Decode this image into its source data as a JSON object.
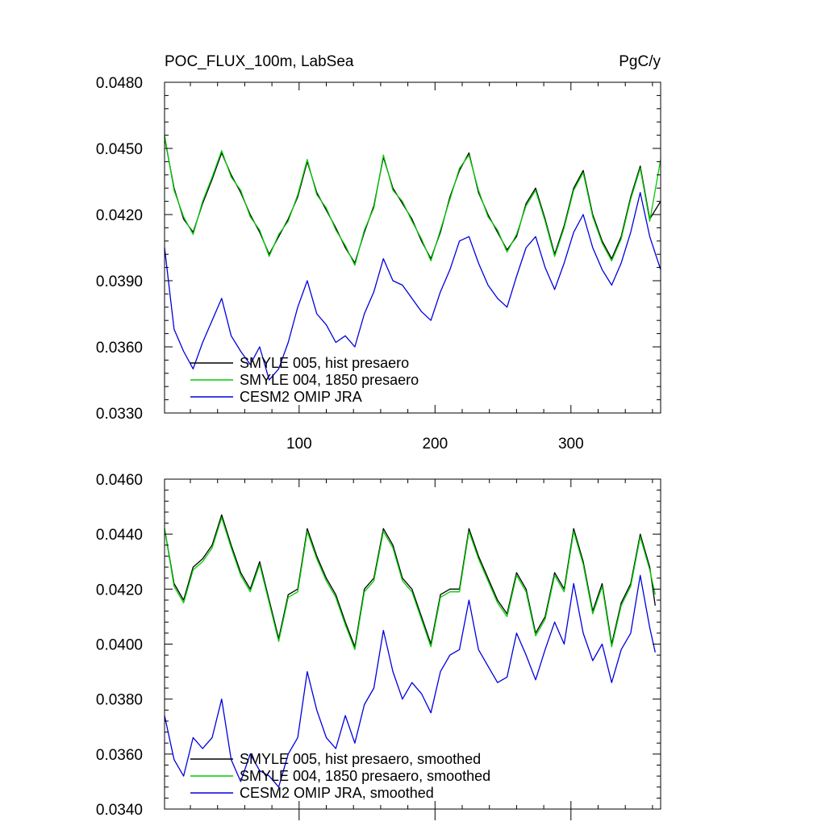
{
  "chart_data": [
    {
      "type": "line",
      "title_left": "POC_FLUX_100m, LabSea",
      "title_right": "PgC/y",
      "xlabel": "",
      "ylabel": "",
      "xlim": [
        1,
        366
      ],
      "ylim": [
        0.033,
        0.048
      ],
      "yticks": [
        0.033,
        0.036,
        0.039,
        0.042,
        0.045,
        0.048
      ],
      "ytick_labels": [
        "0.0330",
        "0.0360",
        "0.0390",
        "0.0420",
        "0.0450",
        "0.0480"
      ],
      "xticks": [
        100,
        200,
        300
      ],
      "xtick_labels": [
        "100",
        "200",
        "300"
      ],
      "legend_position": "bottom-left",
      "series": [
        {
          "name": "SMYLE 005, hist presaero",
          "color": "#000000",
          "x": [
            1,
            8,
            15,
            22,
            29,
            36,
            43,
            50,
            57,
            64,
            71,
            78,
            85,
            92,
            99,
            106,
            113,
            120,
            127,
            134,
            141,
            148,
            155,
            162,
            169,
            176,
            183,
            190,
            197,
            204,
            211,
            218,
            225,
            232,
            239,
            246,
            253,
            260,
            267,
            274,
            281,
            288,
            295,
            302,
            309,
            316,
            323,
            330,
            337,
            344,
            351,
            358,
            366
          ],
          "values": [
            0.0455,
            0.0432,
            0.0418,
            0.0412,
            0.0425,
            0.0436,
            0.0448,
            0.0438,
            0.043,
            0.042,
            0.0412,
            0.0402,
            0.041,
            0.0418,
            0.0428,
            0.0444,
            0.043,
            0.0422,
            0.0414,
            0.0405,
            0.0398,
            0.0412,
            0.0424,
            0.0446,
            0.0432,
            0.0425,
            0.0418,
            0.0408,
            0.04,
            0.0412,
            0.0428,
            0.044,
            0.0448,
            0.043,
            0.042,
            0.0412,
            0.0404,
            0.041,
            0.0425,
            0.0432,
            0.0418,
            0.0402,
            0.0415,
            0.0432,
            0.044,
            0.042,
            0.0408,
            0.04,
            0.041,
            0.0428,
            0.0442,
            0.0418,
            0.0426
          ]
        },
        {
          "name": "SMYLE 004, 1850 presaero",
          "color": "#00cc00",
          "x": [
            1,
            8,
            15,
            22,
            29,
            36,
            43,
            50,
            57,
            64,
            71,
            78,
            85,
            92,
            99,
            106,
            113,
            120,
            127,
            134,
            141,
            148,
            155,
            162,
            169,
            176,
            183,
            190,
            197,
            204,
            211,
            218,
            225,
            232,
            239,
            246,
            253,
            260,
            267,
            274,
            281,
            288,
            295,
            302,
            309,
            316,
            323,
            330,
            337,
            344,
            351,
            358,
            366
          ],
          "values": [
            0.0456,
            0.0431,
            0.0419,
            0.0411,
            0.0426,
            0.0437,
            0.0449,
            0.0437,
            0.0431,
            0.0419,
            0.0413,
            0.0401,
            0.0411,
            0.0417,
            0.0429,
            0.0445,
            0.0429,
            0.0423,
            0.0413,
            0.0406,
            0.0397,
            0.0413,
            0.0423,
            0.0447,
            0.0431,
            0.0426,
            0.0417,
            0.0409,
            0.0399,
            0.0413,
            0.0427,
            0.0441,
            0.0447,
            0.0431,
            0.0419,
            0.0413,
            0.0403,
            0.0411,
            0.0424,
            0.0431,
            0.0417,
            0.0401,
            0.0414,
            0.0431,
            0.0439,
            0.0419,
            0.0407,
            0.0399,
            0.0409,
            0.0427,
            0.0441,
            0.0417,
            0.0445
          ]
        },
        {
          "name": "CESM2 OMIP JRA",
          "color": "#0000dd",
          "x": [
            1,
            8,
            15,
            22,
            29,
            36,
            43,
            50,
            57,
            64,
            71,
            78,
            85,
            92,
            99,
            106,
            113,
            120,
            127,
            134,
            141,
            148,
            155,
            162,
            169,
            176,
            183,
            190,
            197,
            204,
            211,
            218,
            225,
            232,
            239,
            246,
            253,
            260,
            267,
            274,
            281,
            288,
            295,
            302,
            309,
            316,
            323,
            330,
            337,
            344,
            351,
            358,
            366
          ],
          "values": [
            0.0405,
            0.0368,
            0.0358,
            0.035,
            0.0362,
            0.0372,
            0.0382,
            0.0365,
            0.0358,
            0.0352,
            0.036,
            0.0345,
            0.035,
            0.0362,
            0.0378,
            0.039,
            0.0375,
            0.037,
            0.0362,
            0.0365,
            0.036,
            0.0375,
            0.0385,
            0.04,
            0.039,
            0.0388,
            0.0382,
            0.0376,
            0.0372,
            0.0385,
            0.0395,
            0.0408,
            0.041,
            0.0398,
            0.0388,
            0.0382,
            0.0378,
            0.0392,
            0.0405,
            0.041,
            0.0396,
            0.0386,
            0.0398,
            0.0412,
            0.042,
            0.0405,
            0.0395,
            0.0388,
            0.0398,
            0.0412,
            0.043,
            0.041,
            0.0395
          ]
        }
      ]
    },
    {
      "type": "line",
      "title_left": "",
      "title_right": "",
      "xlabel": "",
      "ylabel": "",
      "xlim": [
        1,
        366
      ],
      "ylim": [
        0.034,
        0.046
      ],
      "yticks": [
        0.034,
        0.036,
        0.038,
        0.04,
        0.042,
        0.044,
        0.046
      ],
      "ytick_labels": [
        "0.0340",
        "0.0360",
        "0.0380",
        "0.0400",
        "0.0420",
        "0.0440",
        "0.0460"
      ],
      "xticks": [
        100,
        200,
        300
      ],
      "xtick_labels": [],
      "legend_position": "bottom-left",
      "series": [
        {
          "name": "SMYLE 005, hist presaero, smoothed",
          "color": "#000000",
          "x": [
            1,
            8,
            15,
            22,
            29,
            36,
            43,
            50,
            57,
            64,
            71,
            78,
            85,
            92,
            99,
            106,
            113,
            120,
            127,
            134,
            141,
            148,
            155,
            162,
            169,
            176,
            183,
            190,
            197,
            204,
            211,
            218,
            225,
            232,
            239,
            246,
            253,
            260,
            267,
            274,
            281,
            288,
            295,
            302,
            309,
            316,
            323,
            330,
            337,
            344,
            351,
            358,
            362
          ],
          "values": [
            0.0442,
            0.0422,
            0.0416,
            0.0428,
            0.0431,
            0.0436,
            0.0447,
            0.0436,
            0.0426,
            0.042,
            0.043,
            0.0416,
            0.0402,
            0.0418,
            0.042,
            0.0442,
            0.0432,
            0.0424,
            0.0418,
            0.0408,
            0.0399,
            0.042,
            0.0424,
            0.0442,
            0.0436,
            0.0424,
            0.042,
            0.041,
            0.04,
            0.0418,
            0.042,
            0.042,
            0.0442,
            0.0432,
            0.0424,
            0.0416,
            0.0411,
            0.0426,
            0.042,
            0.0404,
            0.041,
            0.0426,
            0.042,
            0.0442,
            0.043,
            0.0412,
            0.0422,
            0.04,
            0.0415,
            0.0422,
            0.044,
            0.0428,
            0.0414
          ]
        },
        {
          "name": "SMYLE 004, 1850 presaero, smoothed",
          "color": "#00cc00",
          "x": [
            1,
            8,
            15,
            22,
            29,
            36,
            43,
            50,
            57,
            64,
            71,
            78,
            85,
            92,
            99,
            106,
            113,
            120,
            127,
            134,
            141,
            148,
            155,
            162,
            169,
            176,
            183,
            190,
            197,
            204,
            211,
            218,
            225,
            232,
            239,
            246,
            253,
            260,
            267,
            274,
            281,
            288,
            295,
            302,
            309,
            316,
            323,
            330,
            337,
            344,
            351,
            358,
            362
          ],
          "values": [
            0.0442,
            0.0421,
            0.0415,
            0.0427,
            0.043,
            0.0435,
            0.0446,
            0.0435,
            0.0425,
            0.0419,
            0.0429,
            0.0415,
            0.0401,
            0.0417,
            0.0419,
            0.0441,
            0.0431,
            0.0423,
            0.0417,
            0.0407,
            0.0398,
            0.0419,
            0.0423,
            0.0441,
            0.0435,
            0.0423,
            0.0419,
            0.0409,
            0.0399,
            0.0417,
            0.0419,
            0.0419,
            0.0441,
            0.0431,
            0.0423,
            0.0415,
            0.041,
            0.0425,
            0.0419,
            0.0403,
            0.0409,
            0.0425,
            0.0419,
            0.0441,
            0.0429,
            0.0411,
            0.0421,
            0.0399,
            0.0414,
            0.0421,
            0.0439,
            0.0427,
            0.0418
          ]
        },
        {
          "name": "CESM2 OMIP JRA, smoothed",
          "color": "#0000dd",
          "x": [
            1,
            8,
            15,
            22,
            29,
            36,
            43,
            50,
            57,
            64,
            71,
            78,
            85,
            92,
            99,
            106,
            113,
            120,
            127,
            134,
            141,
            148,
            155,
            162,
            169,
            176,
            183,
            190,
            197,
            204,
            211,
            218,
            225,
            232,
            239,
            246,
            253,
            260,
            267,
            274,
            281,
            288,
            295,
            302,
            309,
            316,
            323,
            330,
            337,
            344,
            351,
            358,
            362
          ],
          "values": [
            0.0374,
            0.0358,
            0.0352,
            0.0366,
            0.0362,
            0.0366,
            0.038,
            0.0358,
            0.035,
            0.036,
            0.0354,
            0.0352,
            0.0348,
            0.036,
            0.0366,
            0.039,
            0.0376,
            0.0366,
            0.0362,
            0.0374,
            0.0364,
            0.0378,
            0.0384,
            0.0405,
            0.039,
            0.038,
            0.0386,
            0.0382,
            0.0375,
            0.039,
            0.0396,
            0.0398,
            0.0416,
            0.0398,
            0.0392,
            0.0386,
            0.0388,
            0.0404,
            0.0396,
            0.0387,
            0.0398,
            0.0408,
            0.04,
            0.0422,
            0.0404,
            0.0394,
            0.04,
            0.0386,
            0.0398,
            0.0404,
            0.0425,
            0.0406,
            0.0397
          ]
        }
      ]
    }
  ]
}
